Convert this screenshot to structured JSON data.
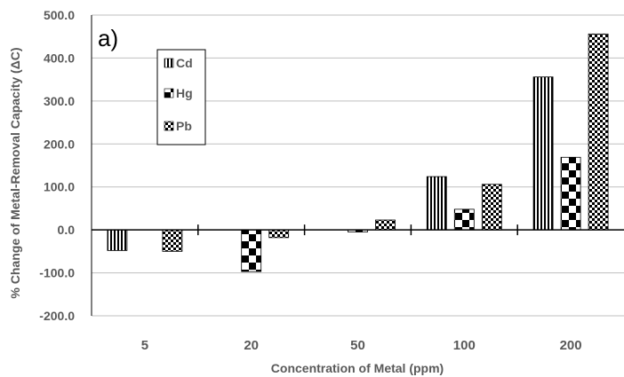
{
  "chart_data": {
    "type": "bar",
    "panel_label": "a)",
    "xlabel": "Concentration of Metal (ppm)",
    "ylabel": "% Change of Metal-Removal Capacity (ΔC)",
    "categories": [
      "5",
      "20",
      "50",
      "100",
      "200"
    ],
    "series": [
      {
        "name": "Cd",
        "pattern": "vertical-stripes",
        "values": [
          -48,
          0,
          0,
          124,
          356
        ]
      },
      {
        "name": "Hg",
        "pattern": "large-checker",
        "values": [
          0,
          -97,
          -5,
          48,
          169
        ]
      },
      {
        "name": "Pb",
        "pattern": "small-checker",
        "values": [
          -50,
          -18,
          23,
          106,
          456
        ]
      }
    ],
    "ylim": [
      -200,
      500
    ],
    "yticks": [
      "500.0",
      "400.0",
      "300.0",
      "200.0",
      "100.0",
      "0.0",
      "-100.0",
      "-200.0"
    ],
    "ytick_values": [
      500,
      400,
      300,
      200,
      100,
      0,
      -100,
      -200
    ],
    "grid": true,
    "legend_position": "top-left"
  },
  "colors": {
    "bar": "#000000",
    "grid": "#bfbfbf",
    "text": "#595959",
    "border": "#000000"
  }
}
